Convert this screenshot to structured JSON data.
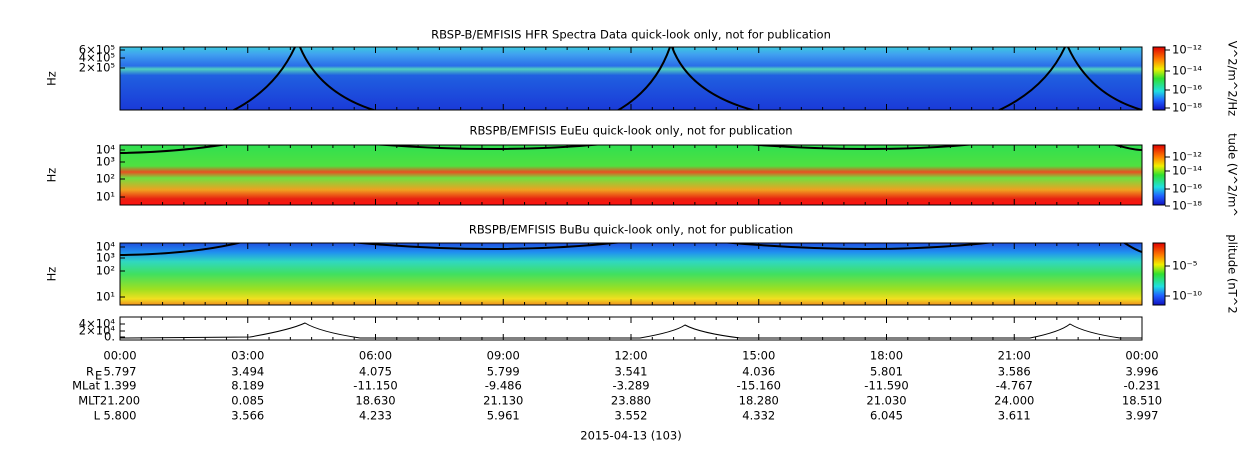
{
  "panels": [
    {
      "title": "RBSP-B/EMFISIS  HFR Spectra Data quick-look only, not for publication",
      "y_label": "Hz",
      "y_ticks": [
        "6×10⁵",
        "4×10⁵",
        "2×10⁵"
      ],
      "colorbar_ticks": [
        "10⁻¹²",
        "10⁻¹⁴",
        "10⁻¹⁶",
        "10⁻¹⁸"
      ],
      "colorbar_title": "V^2/m^2/Hz"
    },
    {
      "title": "RBSPB/EMFISIS  EuEu quick-look only, not for publication",
      "y_label": "Hz",
      "y_ticks": [
        "10⁴",
        "10³",
        "10²",
        "10¹"
      ],
      "colorbar_ticks": [
        "10⁻¹²",
        "10⁻¹⁴",
        "10⁻¹⁶",
        "10⁻¹⁸"
      ],
      "colorbar_title": "tude (V^2/m^"
    },
    {
      "title": "RBSPB/EMFISIS  BuBu quick-look only, not for publication",
      "y_label": "Hz",
      "y_ticks": [
        "10⁴",
        "10³",
        "10²",
        "10¹"
      ],
      "colorbar_ticks": [
        "10⁻⁵",
        "10⁻¹⁰"
      ],
      "colorbar_title": "plitude (nT^2"
    },
    {
      "y_ticks": [
        "4×10⁴",
        "2×10⁴",
        "0."
      ]
    }
  ],
  "time_labels": [
    "00:00",
    "03:00",
    "06:00",
    "09:00",
    "12:00",
    "15:00",
    "18:00",
    "21:00",
    "00:00"
  ],
  "ephemeris": [
    {
      "label": "R",
      "subscript": "E",
      "values": [
        "5.797",
        "3.494",
        "4.075",
        "5.799",
        "3.541",
        "4.036",
        "5.801",
        "3.586",
        "3.996"
      ]
    },
    {
      "label": "MLat",
      "values": [
        "1.399",
        "8.189",
        "-11.150",
        "-9.486",
        "-3.289",
        "-15.160",
        "-11.590",
        "-4.767",
        "-0.231"
      ]
    },
    {
      "label": "MLT",
      "values": [
        "21.200",
        "0.085",
        "18.630",
        "21.130",
        "23.880",
        "18.280",
        "21.030",
        "24.000",
        "18.510"
      ]
    },
    {
      "label": "L",
      "values": [
        "5.800",
        "3.566",
        "4.233",
        "5.961",
        "3.552",
        "4.332",
        "6.045",
        "3.611",
        "3.997"
      ]
    }
  ],
  "date": "2015-04-13 (103)"
}
